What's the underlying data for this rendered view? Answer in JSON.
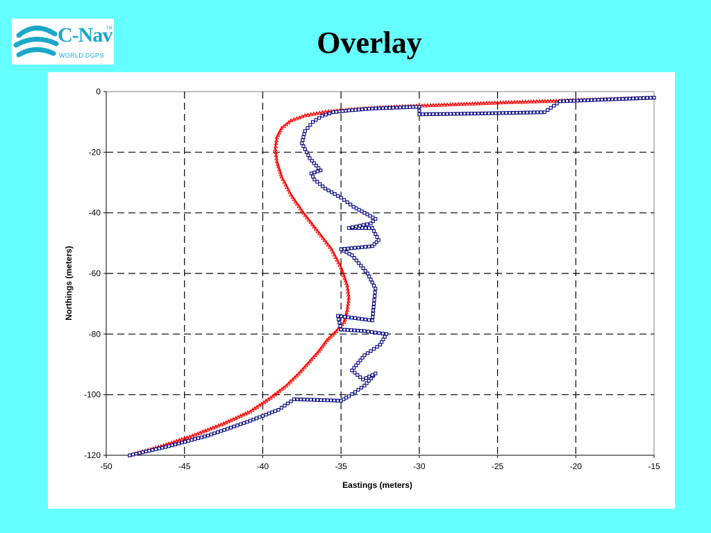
{
  "header": {
    "title": "Overlay",
    "logo": {
      "name": "C-Nav",
      "trademark": "TM",
      "subtitle": "WORLD DGPS",
      "icon": "globe-swoosh-icon",
      "color": "#1aa8c8"
    }
  },
  "colors": {
    "background": "#66ffff",
    "panel": "#ffffff",
    "series_red": "#ff0000",
    "series_blue": "#000080",
    "grid": "#000000"
  },
  "chart_data": {
    "type": "scatter",
    "title": "",
    "xlabel": "Eastings (meters)",
    "ylabel": "Northings (meters)",
    "xlim": [
      -50,
      -15
    ],
    "ylim": [
      -120,
      0
    ],
    "xticks": [
      -50,
      -45,
      -40,
      -35,
      -30,
      -25,
      -20,
      -15
    ],
    "yticks": [
      0,
      -20,
      -40,
      -60,
      -80,
      -100,
      -120
    ],
    "grid": true,
    "grid_style": "dashed",
    "legend": "none",
    "series": [
      {
        "marker": "triangle",
        "color": "#ff0000",
        "x": [
          -48.5,
          -46.5,
          -44.5,
          -42.5,
          -40.8,
          -39.5,
          -38.5,
          -37.7,
          -37.0,
          -36.4,
          -35.9,
          -35.3,
          -34.8,
          -34.6,
          -34.5,
          -34.6,
          -35.0,
          -35.6,
          -36.5,
          -37.4,
          -38.2,
          -38.8,
          -39.1,
          -39.2,
          -39.1,
          -38.8,
          -38.2,
          -37.3,
          -36.0,
          -34.5,
          -32.5,
          -30.0,
          -27.5,
          -25.0,
          -22.5,
          -20.0,
          -17.5,
          -15.0
        ],
        "y": [
          -120.0,
          -117.0,
          -113.5,
          -109.5,
          -105.5,
          -101.0,
          -97.0,
          -93.0,
          -89.0,
          -85.5,
          -82.0,
          -79.0,
          -76.0,
          -72.0,
          -68.0,
          -64.0,
          -58.0,
          -52.0,
          -46.0,
          -40.0,
          -34.0,
          -28.0,
          -23.0,
          -19.0,
          -15.0,
          -12.0,
          -9.5,
          -7.8,
          -6.6,
          -5.9,
          -5.2,
          -4.6,
          -4.1,
          -3.6,
          -3.2,
          -2.8,
          -2.4,
          -2.0
        ]
      },
      {
        "marker": "square",
        "color": "#000080",
        "x": [
          -48.5,
          -46.0,
          -43.5,
          -41.0,
          -39.0,
          -38.0,
          -35.0,
          -34.5,
          -33.5,
          -32.8,
          -33.6,
          -34.3,
          -33.5,
          -32.5,
          -32.1,
          -33.5,
          -35.0,
          -35.2,
          -33.0,
          -32.9,
          -32.8,
          -33.3,
          -34.3,
          -35.0,
          -33.0,
          -32.6,
          -33.0,
          -34.5,
          -33.1,
          -32.8,
          -33.5,
          -34.2,
          -35.0,
          -36.0,
          -36.7,
          -36.9,
          -36.3,
          -37.0,
          -37.5,
          -37.3,
          -36.8,
          -36.2,
          -35.5,
          -34.5,
          -33.0,
          -31.0,
          -30.0,
          -30.0,
          -26.0,
          -22.0,
          -21.0,
          -19.0,
          -17.0,
          -15.0
        ],
        "y": [
          -120.0,
          -117.0,
          -113.5,
          -109.0,
          -105.0,
          -101.5,
          -102.0,
          -100.5,
          -97.0,
          -93.0,
          -95.0,
          -92.0,
          -87.0,
          -83.5,
          -80.0,
          -79.0,
          -78.5,
          -74.0,
          -75.5,
          -70.0,
          -65.0,
          -60.0,
          -54.0,
          -52.0,
          -51.0,
          -49.0,
          -45.0,
          -45.0,
          -43.5,
          -42.0,
          -40.0,
          -38.0,
          -35.0,
          -32.0,
          -29.0,
          -27.0,
          -26.0,
          -22.0,
          -17.0,
          -13.0,
          -10.0,
          -8.0,
          -6.8,
          -6.2,
          -5.6,
          -5.2,
          -5.0,
          -7.5,
          -7.2,
          -6.8,
          -3.2,
          -2.8,
          -2.4,
          -2.0
        ]
      }
    ]
  }
}
